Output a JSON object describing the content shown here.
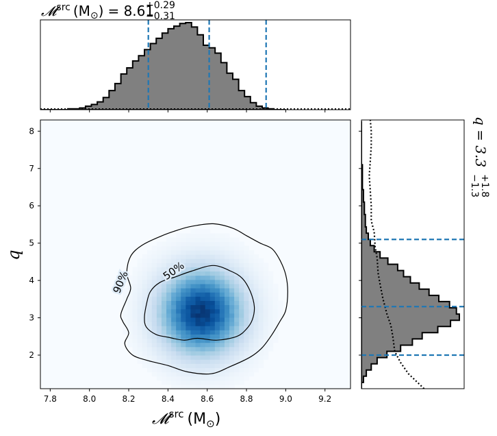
{
  "chart_data": {
    "type": "corner",
    "title": "𝓜src (M⊙) = 8.61 (+0.29 / −0.31)",
    "title_parts": {
      "symbol": "𝓜",
      "sup": "src",
      "unit": "(M",
      "unit_sub": "⊙",
      "unit_close": ")",
      "eq": "= 8.61",
      "plus": "+0.29",
      "minus": "−0.31"
    },
    "right_title_parts": {
      "text": "q = 3.3",
      "plus": "+1.8",
      "minus": "−1.3"
    },
    "xlabel_parts": {
      "symbol": "𝓜",
      "sup": "src",
      "unit": "(M",
      "unit_sub": "⊙",
      "unit_close": ")"
    },
    "ylabel": "q",
    "xlim": [
      7.75,
      9.33
    ],
    "ylim": [
      1.1,
      8.3
    ],
    "x_ticks": [
      7.8,
      8.0,
      8.2,
      8.4,
      8.6,
      8.8,
      9.0,
      9.2
    ],
    "x_tick_labels": [
      "7.8",
      "8.0",
      "8.2",
      "8.4",
      "8.6",
      "8.8",
      "9.0",
      "9.2"
    ],
    "y_ticks": [
      2,
      3,
      4,
      5,
      6,
      7,
      8
    ],
    "y_tick_labels": [
      "2",
      "3",
      "4",
      "5",
      "6",
      "7",
      "8"
    ],
    "mchirp_quantiles": [
      8.3,
      8.61,
      8.9
    ],
    "q_quantiles": [
      2.0,
      3.3,
      5.1
    ],
    "mchirp_hist": {
      "bin_start": 7.74,
      "bin_width": 0.03,
      "counts": [
        0.0,
        0.0,
        0.0,
        0.0,
        0.0,
        0.01,
        0.01,
        0.02,
        0.04,
        0.06,
        0.09,
        0.14,
        0.22,
        0.3,
        0.41,
        0.48,
        0.56,
        0.62,
        0.69,
        0.76,
        0.82,
        0.88,
        0.93,
        0.96,
        0.99,
        1.0,
        0.95,
        0.86,
        0.74,
        0.71,
        0.65,
        0.54,
        0.42,
        0.35,
        0.22,
        0.15,
        0.08,
        0.04,
        0.02,
        0.01,
        0.0,
        0.0
      ]
    },
    "q_hist": {
      "bin_start": 1.1,
      "bin_width": 0.1667,
      "counts": [
        0.0,
        0.02,
        0.05,
        0.1,
        0.16,
        0.26,
        0.4,
        0.52,
        0.62,
        0.78,
        0.91,
        1.0,
        0.97,
        0.9,
        0.79,
        0.69,
        0.59,
        0.5,
        0.43,
        0.37,
        0.27,
        0.19,
        0.13,
        0.09,
        0.07,
        0.05,
        0.04,
        0.04,
        0.03,
        0.03,
        0.02,
        0.02,
        0.01,
        0.01,
        0.01,
        0.01,
        0.0,
        0.0,
        0.0,
        0.0,
        0.0,
        0.0,
        0.0
      ]
    },
    "q_prior": {
      "q": [
        1.1,
        1.5,
        1.8,
        2.1,
        2.5,
        2.8,
        3.1,
        3.5,
        3.9,
        4.2,
        4.6,
        4.9,
        5.3,
        5.6,
        6.0,
        6.4,
        6.8,
        7.2,
        7.6,
        8.0,
        8.3
      ],
      "density": [
        0.64,
        0.48,
        0.4,
        0.34,
        0.32,
        0.3,
        0.26,
        0.22,
        0.19,
        0.17,
        0.16,
        0.14,
        0.13,
        0.1,
        0.1,
        0.09,
        0.08,
        0.09,
        0.1,
        0.1,
        0.09
      ]
    },
    "contours": [
      {
        "label": "90%",
        "label_pos": [
          8.16,
          3.95
        ],
        "label_angle": -68,
        "points": [
          [
            8.52,
            5.45
          ],
          [
            8.63,
            5.52
          ],
          [
            8.73,
            5.4
          ],
          [
            8.8,
            5.2
          ],
          [
            8.87,
            5.0
          ],
          [
            8.93,
            4.85
          ],
          [
            8.97,
            4.55
          ],
          [
            9.0,
            4.15
          ],
          [
            9.01,
            3.7
          ],
          [
            9.0,
            3.2
          ],
          [
            8.97,
            2.9
          ],
          [
            8.93,
            2.55
          ],
          [
            8.88,
            2.2
          ],
          [
            8.82,
            1.95
          ],
          [
            8.72,
            1.7
          ],
          [
            8.62,
            1.5
          ],
          [
            8.5,
            1.55
          ],
          [
            8.4,
            1.72
          ],
          [
            8.3,
            1.85
          ],
          [
            8.22,
            2.0
          ],
          [
            8.18,
            2.3
          ],
          [
            8.2,
            2.6
          ],
          [
            8.17,
            2.9
          ],
          [
            8.16,
            3.1
          ],
          [
            8.19,
            3.5
          ],
          [
            8.21,
            3.8
          ],
          [
            8.19,
            4.2
          ],
          [
            8.21,
            4.65
          ],
          [
            8.27,
            4.95
          ],
          [
            8.37,
            5.2
          ],
          [
            8.45,
            5.35
          ]
        ]
      },
      {
        "label": "50%",
        "label_pos": [
          8.43,
          4.25
        ],
        "label_angle": -35,
        "points": [
          [
            8.52,
            4.25
          ],
          [
            8.63,
            4.4
          ],
          [
            8.72,
            4.25
          ],
          [
            8.78,
            4.05
          ],
          [
            8.82,
            3.7
          ],
          [
            8.84,
            3.3
          ],
          [
            8.83,
            2.95
          ],
          [
            8.8,
            2.7
          ],
          [
            8.75,
            2.5
          ],
          [
            8.65,
            2.4
          ],
          [
            8.55,
            2.45
          ],
          [
            8.48,
            2.4
          ],
          [
            8.4,
            2.48
          ],
          [
            8.34,
            2.55
          ],
          [
            8.29,
            2.75
          ],
          [
            8.28,
            3.0
          ],
          [
            8.29,
            3.35
          ],
          [
            8.31,
            3.7
          ],
          [
            8.36,
            3.95
          ],
          [
            8.44,
            4.1
          ]
        ]
      }
    ],
    "density_peak": [
      8.57,
      3.15
    ],
    "density_sigma": [
      0.145,
      0.78
    ],
    "colormap": [
      "#f7fbff",
      "#deebf7",
      "#c6dbef",
      "#9ecae1",
      "#6baed6",
      "#4292c6",
      "#2171b5",
      "#08519c",
      "#08306b"
    ],
    "colors": {
      "hist_fill": "#808080",
      "quantile_line": "#1f77b4"
    }
  }
}
